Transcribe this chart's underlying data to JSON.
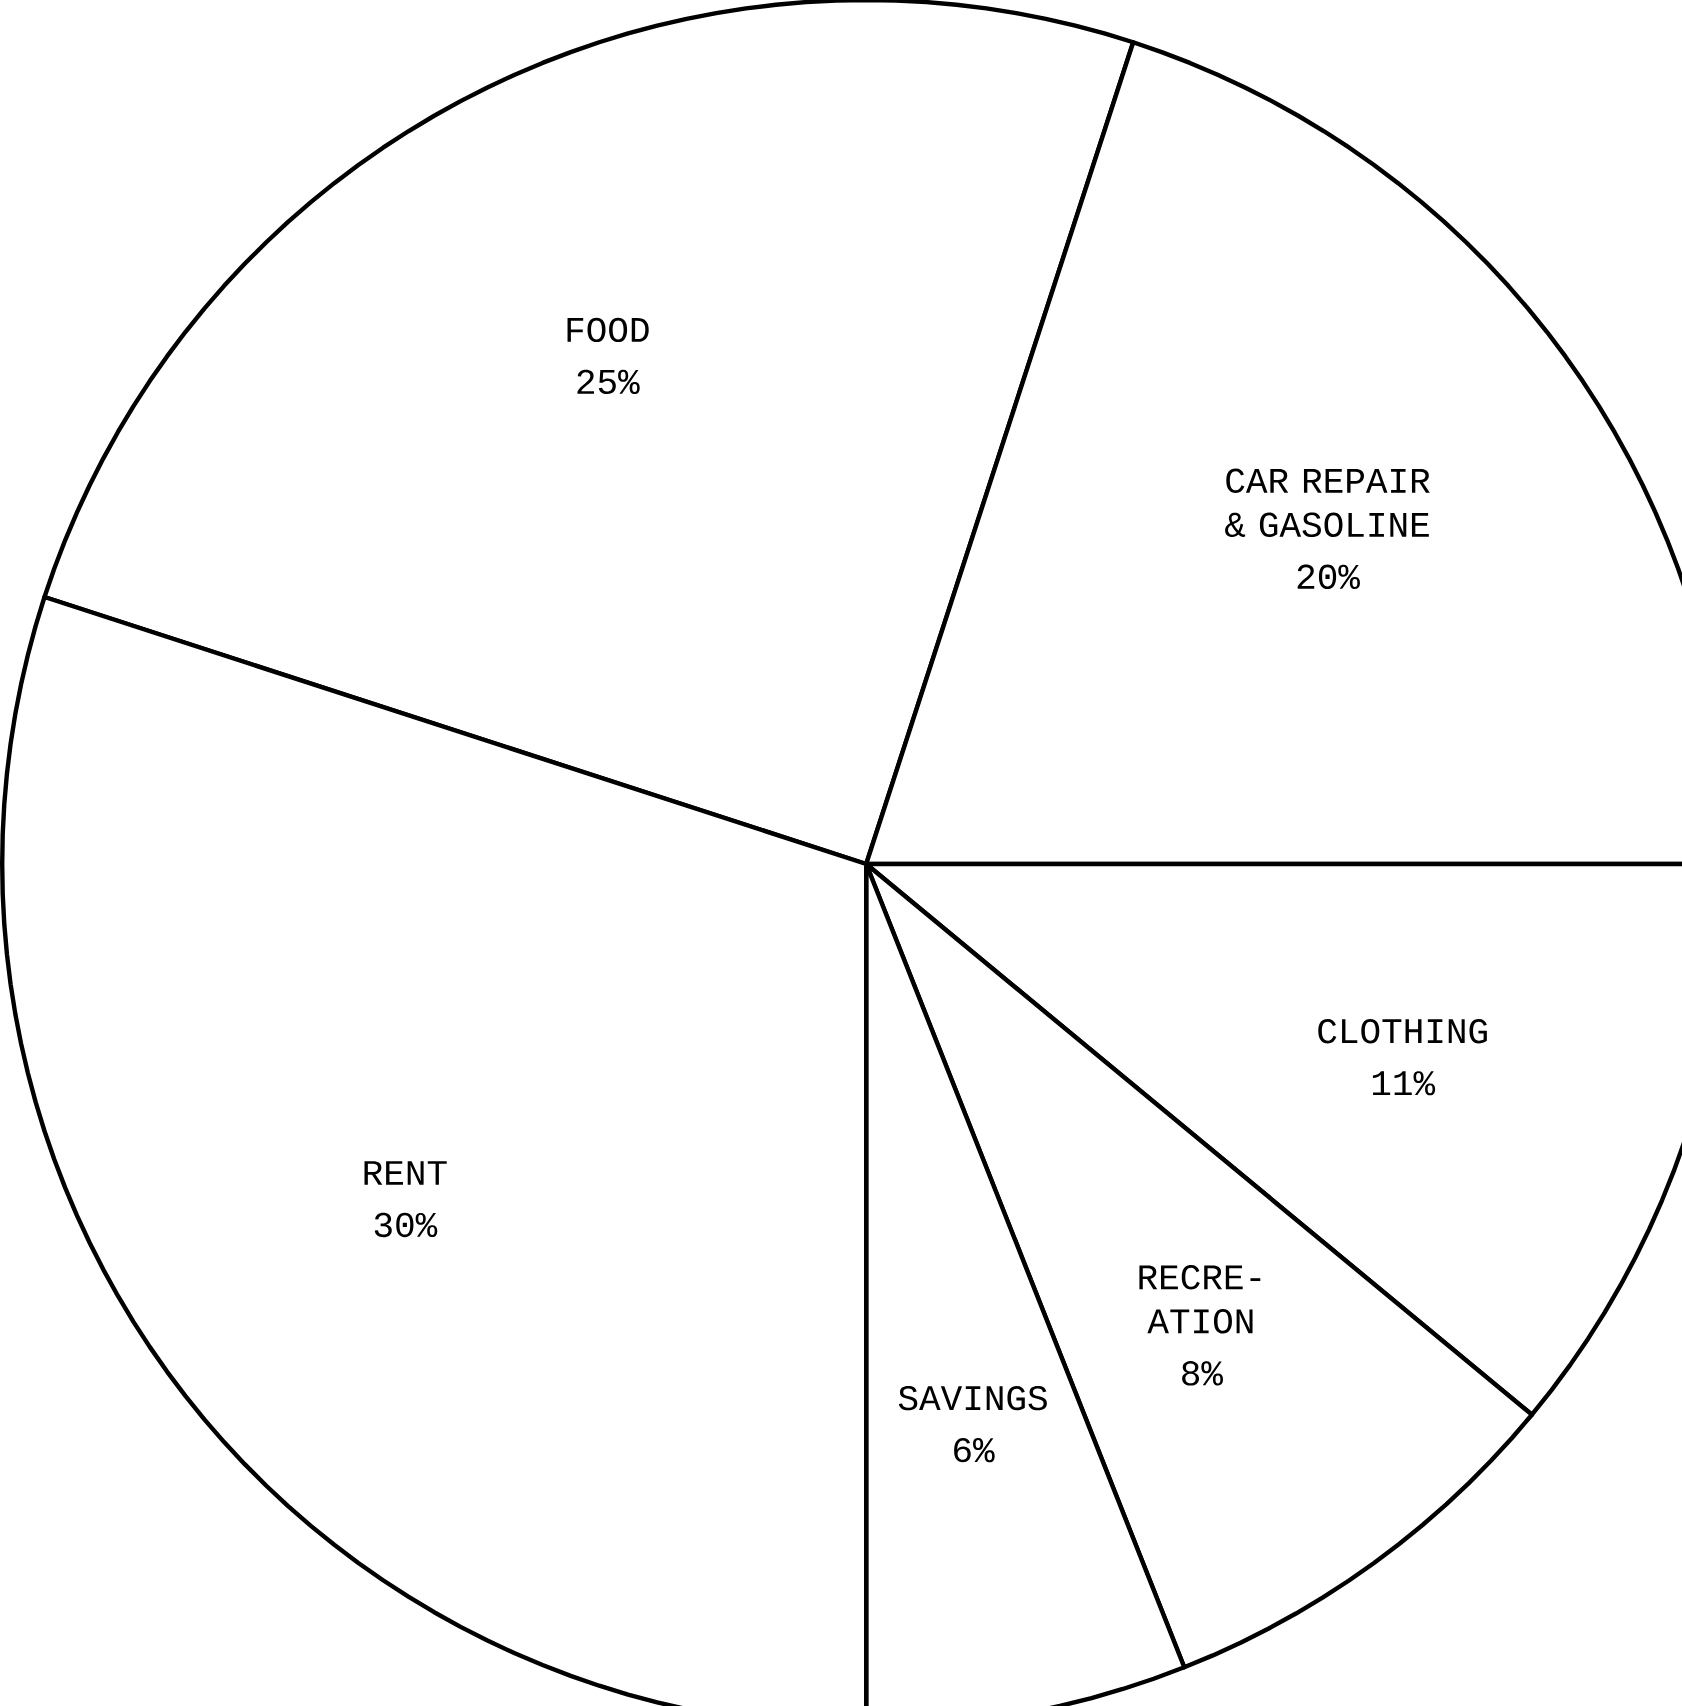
{
  "chart_data": {
    "type": "pie",
    "categories": [
      "FOOD",
      "CAR REPAIR & GASOLINE",
      "CLOTHING",
      "RECRE-ATION",
      "SAVINGS",
      "RENT"
    ],
    "values": [
      25,
      20,
      11,
      8,
      6,
      30
    ],
    "value_labels": [
      "25%",
      "20%",
      "11%",
      "8%",
      "6%",
      "30%"
    ],
    "colors": [
      "#ffffff",
      "#ffffff",
      "#ffffff",
      "#ffffff",
      "#ffffff",
      "#ffffff"
    ]
  }
}
